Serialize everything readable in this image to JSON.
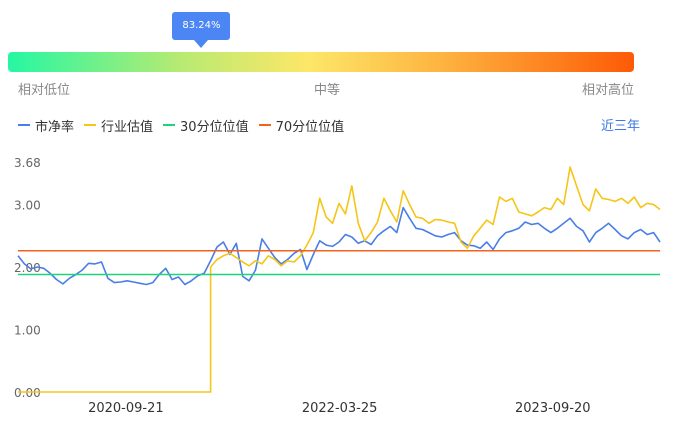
{
  "gauge": {
    "value_label": "83.24%",
    "marker_fraction": 0.309,
    "low_label": "相对低位",
    "mid_label": "中等",
    "high_label": "相对高位",
    "colors": [
      "#26f7a3",
      "#fde768",
      "#fd5a06"
    ]
  },
  "range_label": "近三年",
  "chart_data": {
    "type": "line",
    "y_ticks": [
      "3.68",
      "3.00",
      "2.00",
      "1.00",
      "0.00"
    ],
    "y_tick_values": [
      3.68,
      3.0,
      2.0,
      1.0,
      0.0
    ],
    "ylim": [
      0,
      3.68
    ],
    "x_ticks": [
      "2020-09-21",
      "2022-03-25",
      "2023-09-20"
    ],
    "x_tick_fractions": [
      0.168,
      0.501,
      0.833
    ],
    "legend": [
      {
        "name": "市净率",
        "color": "#4a7ee7"
      },
      {
        "name": "行业估值",
        "color": "#f5c518"
      },
      {
        "name": "30分位位值",
        "color": "#1ed47a"
      },
      {
        "name": "70分位位值",
        "color": "#f3611a"
      }
    ],
    "series": [
      {
        "name": "市净率",
        "color": "#4a7ee7",
        "values": [
          [
            0.0,
            2.18
          ],
          [
            0.01,
            2.05
          ],
          [
            0.02,
            1.97
          ],
          [
            0.03,
            2.0
          ],
          [
            0.04,
            1.98
          ],
          [
            0.05,
            1.9
          ],
          [
            0.06,
            1.8
          ],
          [
            0.07,
            1.73
          ],
          [
            0.08,
            1.82
          ],
          [
            0.09,
            1.88
          ],
          [
            0.1,
            1.95
          ],
          [
            0.11,
            2.06
          ],
          [
            0.12,
            2.05
          ],
          [
            0.13,
            2.08
          ],
          [
            0.14,
            1.82
          ],
          [
            0.15,
            1.75
          ],
          [
            0.16,
            1.76
          ],
          [
            0.17,
            1.78
          ],
          [
            0.18,
            1.76
          ],
          [
            0.19,
            1.74
          ],
          [
            0.2,
            1.72
          ],
          [
            0.21,
            1.75
          ],
          [
            0.22,
            1.88
          ],
          [
            0.23,
            1.98
          ],
          [
            0.24,
            1.8
          ],
          [
            0.25,
            1.84
          ],
          [
            0.26,
            1.72
          ],
          [
            0.27,
            1.78
          ],
          [
            0.28,
            1.86
          ],
          [
            0.29,
            1.9
          ],
          [
            0.3,
            2.1
          ],
          [
            0.31,
            2.32
          ],
          [
            0.32,
            2.4
          ],
          [
            0.33,
            2.2
          ],
          [
            0.34,
            2.38
          ],
          [
            0.35,
            1.85
          ],
          [
            0.36,
            1.78
          ],
          [
            0.37,
            1.95
          ],
          [
            0.38,
            2.45
          ],
          [
            0.39,
            2.3
          ],
          [
            0.4,
            2.15
          ],
          [
            0.41,
            2.05
          ],
          [
            0.42,
            2.12
          ],
          [
            0.43,
            2.22
          ],
          [
            0.44,
            2.28
          ],
          [
            0.45,
            1.96
          ],
          [
            0.46,
            2.2
          ],
          [
            0.47,
            2.42
          ],
          [
            0.48,
            2.35
          ],
          [
            0.49,
            2.33
          ],
          [
            0.5,
            2.4
          ],
          [
            0.51,
            2.52
          ],
          [
            0.52,
            2.48
          ],
          [
            0.53,
            2.38
          ],
          [
            0.54,
            2.42
          ],
          [
            0.55,
            2.36
          ],
          [
            0.56,
            2.5
          ],
          [
            0.57,
            2.58
          ],
          [
            0.58,
            2.65
          ],
          [
            0.59,
            2.55
          ],
          [
            0.6,
            2.95
          ],
          [
            0.61,
            2.78
          ],
          [
            0.62,
            2.62
          ],
          [
            0.63,
            2.6
          ],
          [
            0.64,
            2.55
          ],
          [
            0.65,
            2.5
          ],
          [
            0.66,
            2.48
          ],
          [
            0.67,
            2.52
          ],
          [
            0.68,
            2.55
          ],
          [
            0.69,
            2.42
          ],
          [
            0.7,
            2.35
          ],
          [
            0.71,
            2.34
          ],
          [
            0.72,
            2.3
          ],
          [
            0.73,
            2.4
          ],
          [
            0.74,
            2.28
          ],
          [
            0.75,
            2.45
          ],
          [
            0.76,
            2.55
          ],
          [
            0.77,
            2.58
          ],
          [
            0.78,
            2.62
          ],
          [
            0.79,
            2.72
          ],
          [
            0.8,
            2.68
          ],
          [
            0.81,
            2.7
          ],
          [
            0.82,
            2.62
          ],
          [
            0.83,
            2.55
          ],
          [
            0.84,
            2.62
          ],
          [
            0.85,
            2.7
          ],
          [
            0.86,
            2.78
          ],
          [
            0.87,
            2.65
          ],
          [
            0.88,
            2.58
          ],
          [
            0.89,
            2.4
          ],
          [
            0.9,
            2.55
          ],
          [
            0.91,
            2.62
          ],
          [
            0.92,
            2.7
          ],
          [
            0.93,
            2.6
          ],
          [
            0.94,
            2.5
          ],
          [
            0.95,
            2.45
          ],
          [
            0.96,
            2.55
          ],
          [
            0.97,
            2.6
          ],
          [
            0.98,
            2.52
          ],
          [
            0.99,
            2.55
          ],
          [
            1.0,
            2.4
          ]
        ]
      },
      {
        "name": "行业估值",
        "color": "#f5c518",
        "values": [
          [
            0.0,
            0.0
          ],
          [
            0.3,
            0.0
          ],
          [
            0.3,
            2.0
          ],
          [
            0.31,
            2.12
          ],
          [
            0.32,
            2.18
          ],
          [
            0.33,
            2.22
          ],
          [
            0.34,
            2.15
          ],
          [
            0.35,
            2.08
          ],
          [
            0.36,
            2.02
          ],
          [
            0.37,
            2.1
          ],
          [
            0.38,
            2.05
          ],
          [
            0.39,
            2.18
          ],
          [
            0.4,
            2.12
          ],
          [
            0.41,
            2.02
          ],
          [
            0.42,
            2.1
          ],
          [
            0.43,
            2.08
          ],
          [
            0.44,
            2.18
          ],
          [
            0.45,
            2.35
          ],
          [
            0.46,
            2.55
          ],
          [
            0.47,
            3.1
          ],
          [
            0.48,
            2.8
          ],
          [
            0.49,
            2.7
          ],
          [
            0.5,
            3.02
          ],
          [
            0.51,
            2.85
          ],
          [
            0.52,
            3.3
          ],
          [
            0.53,
            2.7
          ],
          [
            0.54,
            2.42
          ],
          [
            0.55,
            2.55
          ],
          [
            0.56,
            2.72
          ],
          [
            0.57,
            3.1
          ],
          [
            0.58,
            2.9
          ],
          [
            0.59,
            2.72
          ],
          [
            0.6,
            3.22
          ],
          [
            0.61,
            3.0
          ],
          [
            0.62,
            2.8
          ],
          [
            0.63,
            2.78
          ],
          [
            0.64,
            2.7
          ],
          [
            0.65,
            2.76
          ],
          [
            0.66,
            2.75
          ],
          [
            0.67,
            2.72
          ],
          [
            0.68,
            2.7
          ],
          [
            0.69,
            2.4
          ],
          [
            0.7,
            2.3
          ],
          [
            0.71,
            2.5
          ],
          [
            0.72,
            2.62
          ],
          [
            0.73,
            2.75
          ],
          [
            0.74,
            2.68
          ],
          [
            0.75,
            3.12
          ],
          [
            0.76,
            3.05
          ],
          [
            0.77,
            3.1
          ],
          [
            0.78,
            2.88
          ],
          [
            0.79,
            2.85
          ],
          [
            0.8,
            2.82
          ],
          [
            0.81,
            2.88
          ],
          [
            0.82,
            2.95
          ],
          [
            0.83,
            2.92
          ],
          [
            0.84,
            3.1
          ],
          [
            0.85,
            3.0
          ],
          [
            0.86,
            3.6
          ],
          [
            0.87,
            3.3
          ],
          [
            0.88,
            3.0
          ],
          [
            0.89,
            2.9
          ],
          [
            0.9,
            3.25
          ],
          [
            0.91,
            3.1
          ],
          [
            0.92,
            3.08
          ],
          [
            0.93,
            3.05
          ],
          [
            0.94,
            3.1
          ],
          [
            0.95,
            3.02
          ],
          [
            0.96,
            3.12
          ],
          [
            0.97,
            2.95
          ],
          [
            0.98,
            3.02
          ],
          [
            0.99,
            3.0
          ],
          [
            1.0,
            2.92
          ]
        ]
      },
      {
        "name": "30分位位值",
        "color": "#1ed47a",
        "values": [
          [
            0.0,
            1.88
          ],
          [
            1.0,
            1.88
          ]
        ]
      },
      {
        "name": "70分位位值",
        "color": "#f3611a",
        "values": [
          [
            0.0,
            2.26
          ],
          [
            1.0,
            2.26
          ]
        ]
      }
    ]
  }
}
